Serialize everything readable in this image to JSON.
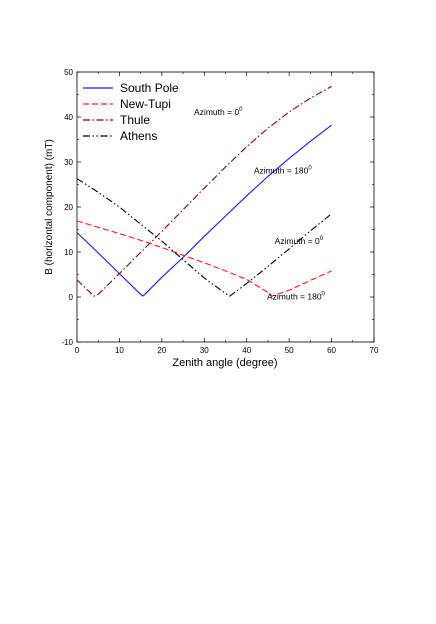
{
  "chart_data": {
    "type": "line",
    "title": "",
    "xlabel": "Zenith angle (degree)",
    "ylabel": "B (horizontal component) (mT)",
    "xlim": [
      0,
      70
    ],
    "ylim": [
      -10,
      50
    ],
    "xticks": [
      0,
      10,
      20,
      30,
      40,
      50,
      60,
      70
    ],
    "yticks": [
      -10,
      0,
      10,
      20,
      30,
      40,
      50
    ],
    "grid": false,
    "legend_position": "top-left",
    "series": [
      {
        "name": "South Pole",
        "color": "#1a1aff",
        "dash": "solid",
        "x": [
          0,
          5,
          10,
          15,
          15.5,
          16,
          20,
          25,
          30,
          35,
          40,
          45,
          50,
          55,
          60
        ],
        "y": [
          14.3,
          9.8,
          5.2,
          0.6,
          0.2,
          0.6,
          4.4,
          8.8,
          13.5,
          18.0,
          22.5,
          26.8,
          30.8,
          34.6,
          38.2
        ]
      },
      {
        "name": "New-Tupi",
        "color": "#ff1a1a",
        "dash": "dashed",
        "x": [
          0,
          5,
          10,
          15,
          20,
          25,
          30,
          35,
          40,
          45,
          46,
          50,
          55,
          60
        ],
        "y": [
          16.9,
          15.5,
          14.1,
          12.6,
          11.0,
          9.3,
          7.6,
          5.8,
          3.9,
          1.0,
          0.2,
          1.5,
          3.7,
          5.8
        ]
      },
      {
        "name": "Thule",
        "color": "#8b0000",
        "dash": "dashdot",
        "x": [
          0,
          4,
          5,
          10,
          15,
          20,
          25,
          30,
          35,
          40,
          45,
          50,
          55,
          60
        ],
        "y": [
          3.8,
          0.2,
          0.6,
          5.2,
          9.9,
          14.6,
          19.4,
          24.2,
          28.9,
          33.4,
          37.5,
          41.1,
          44.2,
          46.8
        ]
      },
      {
        "name": "Athens",
        "color": "#000000",
        "dash": "dashdotdot",
        "x": [
          0,
          5,
          10,
          15,
          20,
          25,
          30,
          35,
          36,
          40,
          45,
          50,
          55,
          60
        ],
        "y": [
          26.3,
          23.3,
          20.0,
          16.2,
          12.4,
          8.3,
          4.2,
          0.8,
          0.2,
          3.0,
          6.8,
          10.7,
          14.7,
          18.5
        ]
      }
    ],
    "annotations": [
      {
        "text": "Azimuth = 0",
        "sup": "0",
        "x": 33.3,
        "y": 40.4
      },
      {
        "text": "Azimuth = 180",
        "sup": "0",
        "x": 48.5,
        "y": 27.4
      },
      {
        "text": "Azimuth = 0",
        "sup": "0",
        "x": 52.3,
        "y": 11.8
      },
      {
        "text": "Azimuth = 180",
        "sup": "0",
        "x": 51.6,
        "y": -0.6
      }
    ]
  }
}
